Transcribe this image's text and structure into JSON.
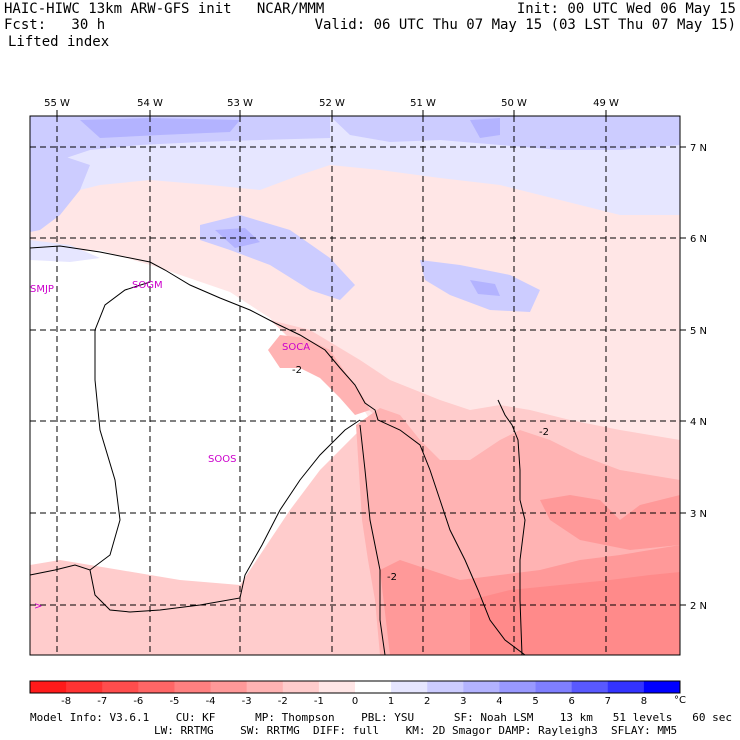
{
  "header": {
    "title_left": "HAIC-HIWC 13km ARW-GFS init   NCAR/MMM",
    "fcst": "Fcst:   30 h",
    "field": "Lifted index",
    "init": "Init: 00 UTC Wed 06 May 15",
    "valid": "Valid: 06 UTC Thu 07 May 15 (03 LST Thu 07 May 15)"
  },
  "map": {
    "lon_labels": [
      "55 W",
      "54 W",
      "53 W",
      "52 W",
      "51 W",
      "50 W",
      "49 W"
    ],
    "lat_labels": [
      "7 N",
      "6 N",
      "5 N",
      "4 N",
      "3 N",
      "2 N"
    ],
    "stations": [
      "SMJP",
      "SOGM",
      "SOCA",
      "SOOS"
    ],
    "contour_labels": [
      "-2",
      "-2",
      "-2"
    ]
  },
  "colorbar": {
    "labels": [
      "-8",
      "-7",
      "-6",
      "-5",
      "-4",
      "-3",
      "-2",
      "-1",
      "0",
      "1",
      "2",
      "3",
      "4",
      "5",
      "6",
      "7",
      "8"
    ],
    "unit": "°C",
    "colors": [
      "#ff1a1a",
      "#ff3333",
      "#ff4d4d",
      "#ff6666",
      "#ff8080",
      "#ff9999",
      "#ffb3b3",
      "#ffcccc",
      "#ffe6e6",
      "#ffffff",
      "#e6e6ff",
      "#ccccff",
      "#b3b3ff",
      "#9999ff",
      "#7f7fff",
      "#5959ff",
      "#3333ff",
      "#0000ff"
    ]
  },
  "footer": {
    "line1": "Model Info: V3.6.1    CU: KF      MP: Thompson    PBL: YSU      SF: Noah LSM    13 km   51 levels   60 sec",
    "line2": "LW: RRTMG    SW: RRTMG  DIFF: full    KM: 2D Smagor DAMP: Rayleigh3  SFLAY: MM5"
  }
}
